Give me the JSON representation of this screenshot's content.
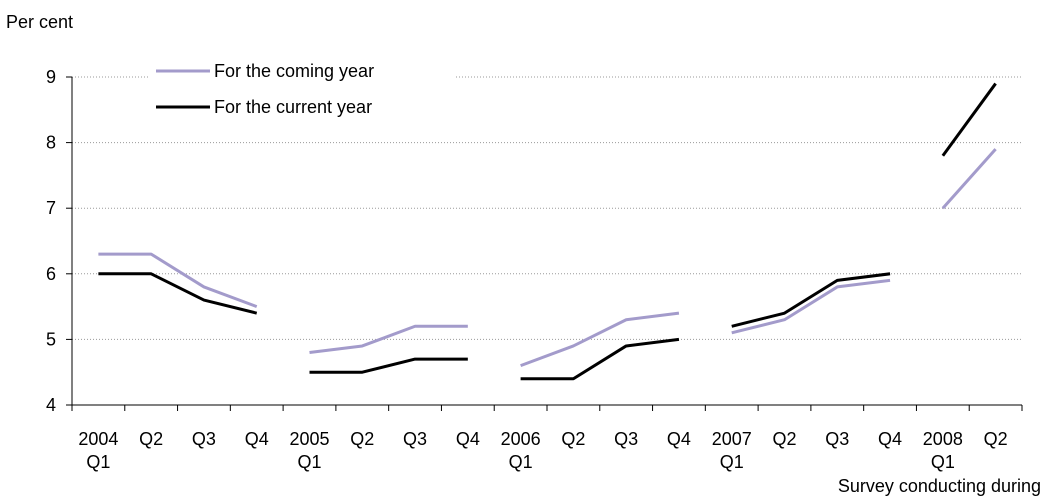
{
  "chart_data": {
    "type": "line",
    "title": "",
    "ylabel": "Per cent",
    "xlabel": "Survey conducting during",
    "ylim": [
      4,
      9
    ],
    "yticks": [
      4,
      5,
      6,
      7,
      8,
      9
    ],
    "grid": "horizontal dotted",
    "legend_position": "top-left",
    "categories": [
      [
        "2004",
        "Q1"
      ],
      [
        "Q2"
      ],
      [
        "Q3"
      ],
      [
        "Q4"
      ],
      [
        "2005",
        "Q1"
      ],
      [
        "Q2"
      ],
      [
        "Q3"
      ],
      [
        "Q4"
      ],
      [
        "2006",
        "Q1"
      ],
      [
        "Q2"
      ],
      [
        "Q3"
      ],
      [
        "Q4"
      ],
      [
        "2007",
        "Q1"
      ],
      [
        "Q2"
      ],
      [
        "Q3"
      ],
      [
        "Q4"
      ],
      [
        "2008",
        "Q1"
      ],
      [
        "Q2"
      ]
    ],
    "series": [
      {
        "name": "For the coming year",
        "color": "#a39bcb",
        "segments": [
          {
            "start": 0,
            "values": [
              6.3,
              6.3,
              5.8,
              5.5
            ]
          },
          {
            "start": 4,
            "values": [
              4.8,
              4.9,
              5.2,
              5.2
            ]
          },
          {
            "start": 8,
            "values": [
              4.6,
              4.9,
              5.3,
              5.4
            ]
          },
          {
            "start": 12,
            "values": [
              5.1,
              5.3,
              5.8,
              5.9
            ]
          },
          {
            "start": 16,
            "values": [
              7.0,
              7.9
            ]
          }
        ]
      },
      {
        "name": "For the current year",
        "color": "#000000",
        "segments": [
          {
            "start": 0,
            "values": [
              6.0,
              6.0,
              5.6,
              5.4
            ]
          },
          {
            "start": 4,
            "values": [
              4.5,
              4.5,
              4.7,
              4.7
            ]
          },
          {
            "start": 8,
            "values": [
              4.4,
              4.4,
              4.9,
              5.0
            ]
          },
          {
            "start": 12,
            "values": [
              5.2,
              5.4,
              5.9,
              6.0
            ]
          },
          {
            "start": 16,
            "values": [
              7.8,
              8.9
            ]
          }
        ]
      }
    ]
  }
}
